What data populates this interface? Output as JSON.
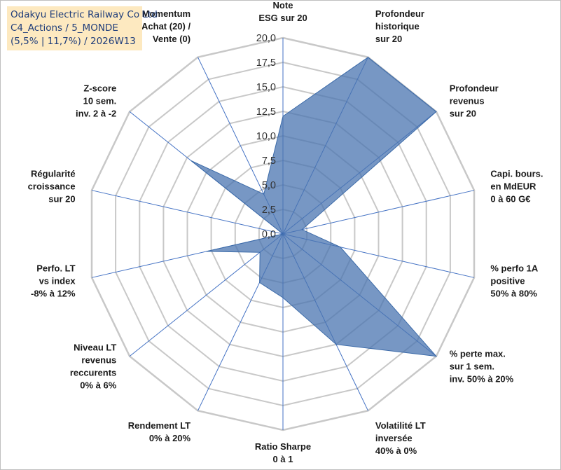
{
  "title": {
    "line1": "Odakyu Electric Railway Co Ltd",
    "line2": "C4_Actions / 5_MONDE",
    "line3": "(5,5% | 11,7%) / 2026W13"
  },
  "colors": {
    "fill": "#4a74b0",
    "fill_opacity": "0.75",
    "stroke": "#3b6aa8",
    "grid": "#c8c8c8",
    "spoke": "#4472c4",
    "title_bg": "#fde9c0",
    "title_text": "#1f3d7a"
  },
  "chart_data": {
    "type": "radar",
    "rmin": 0,
    "rmax": 20,
    "ticks": [
      0,
      2.5,
      5,
      7.5,
      10,
      12.5,
      15,
      17.5,
      20
    ],
    "tick_labels": [
      "0,0",
      "2,5",
      "5,0",
      "7,5",
      "10,0",
      "12,5",
      "15,0",
      "17,5",
      "20,0"
    ],
    "categories": [
      [
        "Note",
        "ESG sur 20"
      ],
      [
        "Profondeur",
        "historique",
        "sur 20"
      ],
      [
        "Profondeur",
        "revenus",
        "sur 20"
      ],
      [
        "Capi. bours.",
        "en MdEUR",
        "0 à 60 G€"
      ],
      [
        "% perfo 1A",
        "positive",
        "50% à 80%"
      ],
      [
        "% perte max.",
        "sur 1 sem.",
        "inv. 50% à 20%"
      ],
      [
        "Volatilité LT",
        "inversée",
        "40% à 0%"
      ],
      [
        "Ratio Sharpe",
        "0 à 1"
      ],
      [
        "Rendement LT",
        "0% à 20%"
      ],
      [
        "Niveau LT",
        "revenus",
        "reccurents",
        "0% à 6%"
      ],
      [
        "Perfo. LT",
        "vs index",
        "-8% à 12%"
      ],
      [
        "Régularité",
        "croissance",
        "sur 20"
      ],
      [
        "Z-score",
        "10 sem.",
        "inv. 2 à -2"
      ],
      [
        "Momentum",
        "Achat (20) /",
        "Vente (0)"
      ]
    ],
    "values": [
      12,
      20,
      20,
      2,
      6,
      20,
      12.5,
      6.5,
      5.5,
      3,
      8,
      0,
      12,
      4.5
    ]
  }
}
